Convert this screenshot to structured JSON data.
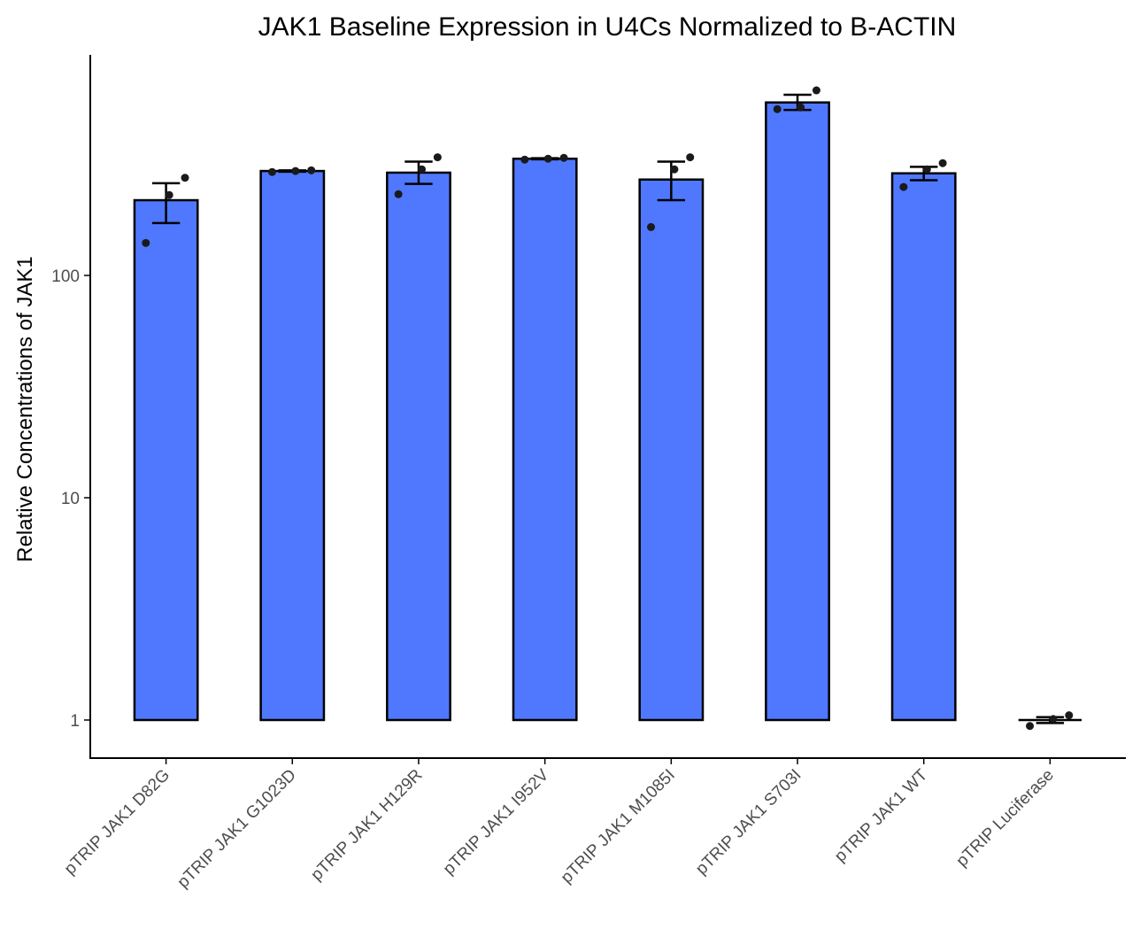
{
  "chart_data": {
    "type": "bar",
    "title": "JAK1 Baseline Expression in U4Cs Normalized to B-ACTIN",
    "xlabel": "",
    "ylabel": "Relative Concentrations of JAK1",
    "y_scale": "log10",
    "ylim": [
      0.8,
      1000
    ],
    "yticks": [
      1,
      10,
      100
    ],
    "ytick_labels": [
      "1",
      "10",
      "100"
    ],
    "bar_color": "#4f78ff",
    "grid": false,
    "categories": [
      "pTRIP JAK1 D82G",
      "pTRIP JAK1 G1023D",
      "pTRIP JAK1 H129R",
      "pTRIP JAK1 I952V",
      "pTRIP JAK1 M1085I",
      "pTRIP JAK1 S703I",
      "pTRIP JAK1 WT",
      "pTRIP Luciferase"
    ],
    "values": [
      218,
      295,
      290,
      335,
      270,
      600,
      288,
      1.0
    ],
    "error_low": [
      172,
      293,
      258,
      333,
      218,
      555,
      268,
      0.97
    ],
    "error_high": [
      260,
      297,
      325,
      337,
      325,
      650,
      308,
      1.03
    ],
    "points": [
      [
        140,
        230,
        275
      ],
      [
        292,
        295,
        297
      ],
      [
        232,
        300,
        340
      ],
      [
        332,
        335,
        338
      ],
      [
        165,
        300,
        340
      ],
      [
        560,
        570,
        680
      ],
      [
        250,
        300,
        320
      ],
      [
        0.94,
        1.01,
        1.05
      ]
    ]
  }
}
